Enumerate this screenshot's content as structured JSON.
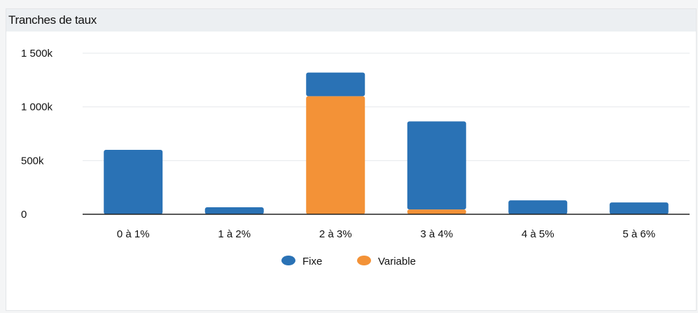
{
  "title": "Tranches de taux",
  "colors": {
    "fixe": "#2a72b5",
    "variable": "#f39237"
  },
  "chart_data": {
    "type": "bar",
    "stacked": true,
    "title": "Tranches de taux",
    "categories": [
      "0 à 1%",
      "1 à 2%",
      "2 à 3%",
      "3 à 4%",
      "4 à 5%",
      "5 à 6%"
    ],
    "series": [
      {
        "name": "Fixe",
        "color": "#2a72b5",
        "values": [
          600,
          65,
          220,
          820,
          130,
          110
        ]
      },
      {
        "name": "Variable",
        "color": "#f39237",
        "values": [
          0,
          0,
          1100,
          45,
          0,
          0
        ]
      }
    ],
    "y_ticks": [
      {
        "value": 0,
        "label": "0"
      },
      {
        "value": 500,
        "label": "500k"
      },
      {
        "value": 1000,
        "label": "1 000k"
      },
      {
        "value": 1500,
        "label": "1 500k"
      }
    ],
    "ylim": [
      0,
      1500
    ],
    "xlabel": "",
    "ylabel": "",
    "legend": "bottom",
    "grid": true
  }
}
